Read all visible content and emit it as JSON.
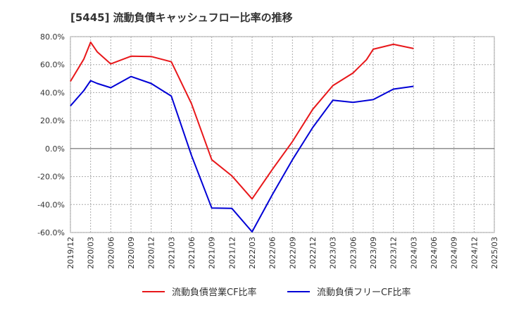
{
  "title": "[5445]  流動負債キャッシュフロー比率の推移",
  "chart_data": {
    "type": "line",
    "title": "[5445]  流動負債キャッシュフロー比率の推移",
    "xlabel": "",
    "ylabel": "",
    "ylim": [
      -60,
      80
    ],
    "y_ticks": [
      "80.0%",
      "60.0%",
      "40.0%",
      "20.0%",
      "0.0%",
      "-20.0%",
      "-40.0%",
      "-60.0%"
    ],
    "y_tick_values": [
      80,
      60,
      40,
      20,
      0,
      -20,
      -40,
      -60
    ],
    "x": [
      "2019/12",
      "2020/03",
      "2020/06",
      "2020/09",
      "2020/12",
      "2021/03",
      "2021/06",
      "2021/09",
      "2021/12",
      "2022/03",
      "2022/06",
      "2022/09",
      "2022/12",
      "2023/03",
      "2023/06",
      "2023/09",
      "2023/12",
      "2024/03",
      "2024/06",
      "2024/09",
      "2024/12",
      "2025/03"
    ],
    "grid": true,
    "legend_position": "bottom",
    "series": [
      {
        "name": "流動負債営業CF比率",
        "color": "#e8171a",
        "points": [
          [
            "2019/12",
            48.0
          ],
          [
            "2020/02",
            64.0
          ],
          [
            "2020/03",
            76.0
          ],
          [
            "2020/04",
            69.0
          ],
          [
            "2020/06",
            60.5
          ],
          [
            "2020/09",
            66.0
          ],
          [
            "2020/12",
            65.8
          ],
          [
            "2021/03",
            62.0
          ],
          [
            "2021/06",
            32.0
          ],
          [
            "2021/09",
            -8.0
          ],
          [
            "2021/12",
            -19.5
          ],
          [
            "2022/03",
            -36.0
          ],
          [
            "2022/06",
            -15.0
          ],
          [
            "2022/09",
            5.0
          ],
          [
            "2022/12",
            28.0
          ],
          [
            "2023/03",
            45.0
          ],
          [
            "2023/06",
            54.0
          ],
          [
            "2023/08",
            63.5
          ],
          [
            "2023/09",
            71.0
          ],
          [
            "2023/12",
            74.5
          ],
          [
            "2024/03",
            71.5
          ]
        ]
      },
      {
        "name": "流動負債フリーCF比率",
        "color": "#0000d6",
        "points": [
          [
            "2019/12",
            30.5
          ],
          [
            "2020/02",
            41.5
          ],
          [
            "2020/03",
            48.5
          ],
          [
            "2020/04",
            46.5
          ],
          [
            "2020/06",
            43.5
          ],
          [
            "2020/09",
            51.5
          ],
          [
            "2020/12",
            46.5
          ],
          [
            "2021/03",
            37.5
          ],
          [
            "2021/06",
            -5.0
          ],
          [
            "2021/09",
            -42.5
          ],
          [
            "2021/12",
            -42.8
          ],
          [
            "2022/03",
            -59.5
          ],
          [
            "2022/06",
            -33.0
          ],
          [
            "2022/09",
            -8.0
          ],
          [
            "2022/12",
            15.0
          ],
          [
            "2023/03",
            34.5
          ],
          [
            "2023/06",
            33.0
          ],
          [
            "2023/09",
            35.0
          ],
          [
            "2023/12",
            42.5
          ],
          [
            "2024/03",
            44.5
          ]
        ]
      }
    ]
  }
}
